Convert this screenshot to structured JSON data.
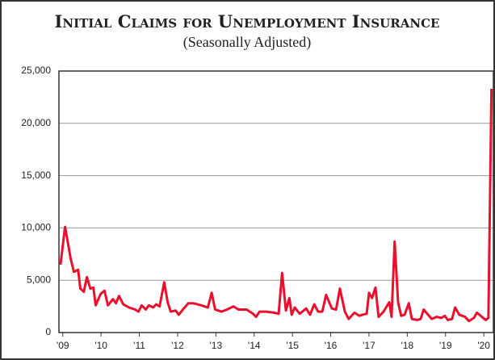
{
  "chart_data": {
    "type": "line",
    "title": "Initial Claims for Unemployment Insurance",
    "subtitle": "(Seasonally Adjusted)",
    "xlim": [
      2008.9,
      2020.25
    ],
    "xticks": [
      {
        "value": 2009,
        "label": "'09"
      },
      {
        "value": 2010,
        "label": "'10"
      },
      {
        "value": 2011,
        "label": "'11"
      },
      {
        "value": 2012,
        "label": "'12"
      },
      {
        "value": 2013,
        "label": "'13"
      },
      {
        "value": 2014,
        "label": "'14"
      },
      {
        "value": 2015,
        "label": "'15"
      },
      {
        "value": 2016,
        "label": "'16"
      },
      {
        "value": 2017,
        "label": "'17"
      },
      {
        "value": 2018,
        "label": "'18"
      },
      {
        "value": 2019,
        "label": "'19"
      },
      {
        "value": 2020,
        "label": "'20"
      }
    ],
    "ylim": [
      0,
      25000
    ],
    "yticks": [
      0,
      {
        "value": 5000,
        "label": "5,000"
      },
      {
        "value": 10000,
        "label": "10,000"
      },
      {
        "value": 15000,
        "label": "15,000"
      },
      {
        "value": 20000,
        "label": "20,000"
      },
      {
        "value": 25000,
        "label": "25,000"
      }
    ],
    "grid": true,
    "x": [
      2008.94,
      2009.06,
      2009.21,
      2009.29,
      2009.4,
      2009.46,
      2009.55,
      2009.63,
      2009.72,
      2009.8,
      2009.86,
      2009.99,
      2010.09,
      2010.18,
      2010.31,
      2010.39,
      2010.47,
      2010.58,
      2010.73,
      2010.89,
      2010.98,
      2011.06,
      2011.17,
      2011.25,
      2011.36,
      2011.44,
      2011.53,
      2011.65,
      2011.74,
      2011.82,
      2011.95,
      2012.03,
      2012.16,
      2012.28,
      2012.41,
      2012.62,
      2012.79,
      2012.89,
      2012.98,
      2013.15,
      2013.29,
      2013.46,
      2013.59,
      2013.8,
      2013.97,
      2014.05,
      2014.14,
      2014.31,
      2014.52,
      2014.64,
      2014.73,
      2014.83,
      2014.92,
      2014.98,
      2015.06,
      2015.19,
      2015.36,
      2015.46,
      2015.57,
      2015.67,
      2015.78,
      2015.88,
      2016.03,
      2016.14,
      2016.24,
      2016.37,
      2016.47,
      2016.62,
      2016.75,
      2016.83,
      2016.94,
      2017.0,
      2017.08,
      2017.17,
      2017.25,
      2017.38,
      2017.53,
      2017.59,
      2017.67,
      2017.76,
      2017.84,
      2017.93,
      2018.04,
      2018.12,
      2018.26,
      2018.35,
      2018.43,
      2018.52,
      2018.64,
      2018.77,
      2018.89,
      2018.98,
      2019.06,
      2019.17,
      2019.25,
      2019.36,
      2019.51,
      2019.61,
      2019.74,
      2019.82,
      2019.95,
      2020.05,
      2020.12,
      2020.2
    ],
    "series": [
      {
        "name": "Initial Claims",
        "color": "#e8112d",
        "values": [
          6500,
          10100,
          7000,
          5800,
          6000,
          4200,
          3900,
          5300,
          4200,
          4300,
          2600,
          3700,
          4000,
          2600,
          3200,
          2800,
          3500,
          2700,
          2400,
          2200,
          2000,
          2600,
          2200,
          2600,
          2400,
          2700,
          2500,
          4800,
          2900,
          2000,
          2100,
          1700,
          2300,
          2800,
          2800,
          2600,
          2400,
          3800,
          2200,
          2000,
          2200,
          2500,
          2200,
          2200,
          1800,
          1500,
          2000,
          2000,
          1900,
          1800,
          5700,
          2100,
          3300,
          1700,
          2400,
          1800,
          2300,
          1700,
          2700,
          2000,
          2000,
          3600,
          2300,
          2200,
          4200,
          2000,
          1300,
          1900,
          1600,
          1700,
          1800,
          3800,
          3300,
          4300,
          1500,
          2000,
          2900,
          1500,
          8700,
          2900,
          1600,
          1700,
          2800,
          1300,
          1200,
          1300,
          2200,
          1800,
          1300,
          1500,
          1400,
          1600,
          1200,
          1300,
          2400,
          1700,
          1500,
          1100,
          1400,
          1900,
          1500,
          1200,
          1400,
          23300
        ]
      }
    ]
  }
}
